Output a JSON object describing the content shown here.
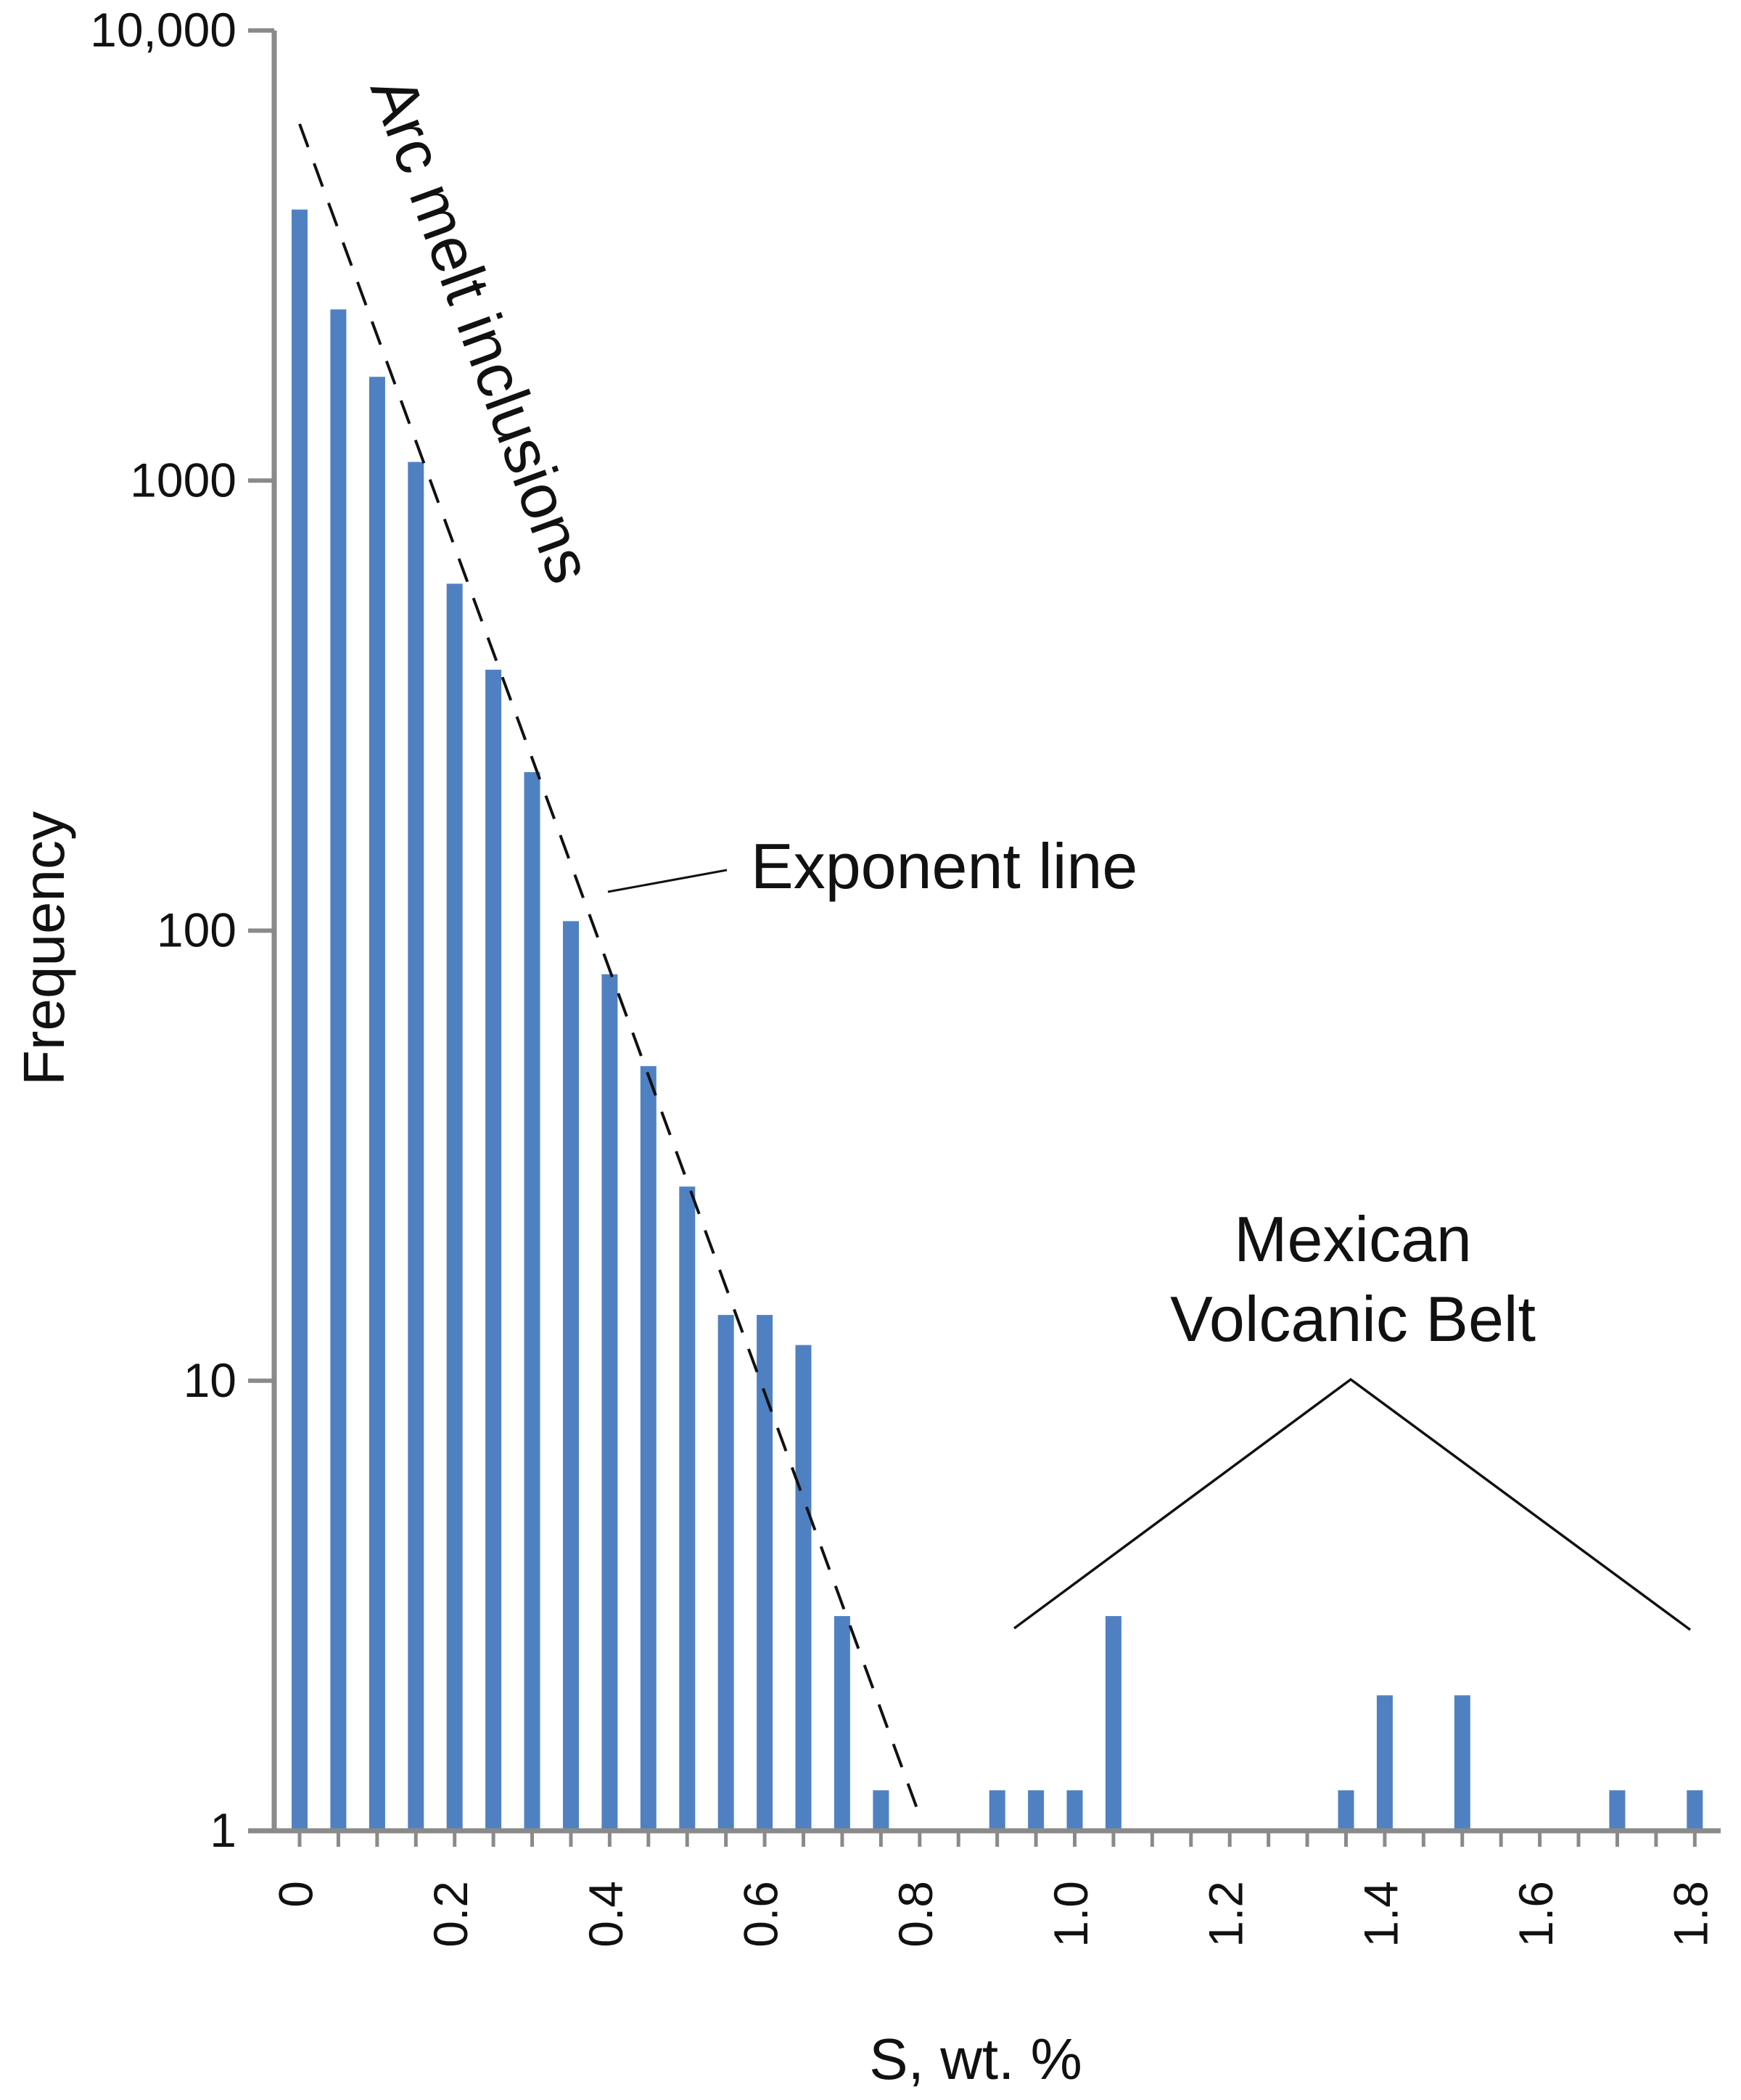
{
  "chart_data": {
    "type": "bar",
    "y_scale": "log",
    "ylabel": "Frequency",
    "xlabel": "S, wt. %",
    "ylim": [
      1,
      10000
    ],
    "xlim": [
      -0.03,
      1.83
    ],
    "y_ticks": [
      {
        "value": 1,
        "label": "1"
      },
      {
        "value": 10,
        "label": "10"
      },
      {
        "value": 100,
        "label": "100"
      },
      {
        "value": 1000,
        "label": "1000"
      },
      {
        "value": 10000,
        "label": "10,000"
      }
    ],
    "x_tick_labels": [
      {
        "value": 0,
        "label": "0"
      },
      {
        "value": 0.2,
        "label": "0.2"
      },
      {
        "value": 0.4,
        "label": "0.4"
      },
      {
        "value": 0.6,
        "label": "0.6"
      },
      {
        "value": 0.8,
        "label": "0.8"
      },
      {
        "value": 1.0,
        "label": "1.0"
      },
      {
        "value": 1.2,
        "label": "1.2"
      },
      {
        "value": 1.4,
        "label": "1.4"
      },
      {
        "value": 1.6,
        "label": "1.6"
      },
      {
        "value": 1.8,
        "label": "1.8"
      }
    ],
    "x_minor_step": 0.05,
    "bars": [
      {
        "x": 0.0,
        "value": 4000
      },
      {
        "x": 0.05,
        "value": 2400
      },
      {
        "x": 0.1,
        "value": 1700
      },
      {
        "x": 0.15,
        "value": 1100
      },
      {
        "x": 0.2,
        "value": 590
      },
      {
        "x": 0.25,
        "value": 380
      },
      {
        "x": 0.3,
        "value": 225
      },
      {
        "x": 0.35,
        "value": 105
      },
      {
        "x": 0.4,
        "value": 80
      },
      {
        "x": 0.45,
        "value": 50
      },
      {
        "x": 0.5,
        "value": 27
      },
      {
        "x": 0.55,
        "value": 14
      },
      {
        "x": 0.6,
        "value": 14
      },
      {
        "x": 0.65,
        "value": 12
      },
      {
        "x": 0.7,
        "value": 3
      },
      {
        "x": 0.75,
        "value": 1.23
      },
      {
        "x": 0.9,
        "value": 1.23
      },
      {
        "x": 0.95,
        "value": 1.23
      },
      {
        "x": 1.0,
        "value": 1.23
      },
      {
        "x": 1.05,
        "value": 3
      },
      {
        "x": 1.35,
        "value": 1.23
      },
      {
        "x": 1.4,
        "value": 2
      },
      {
        "x": 1.5,
        "value": 2
      },
      {
        "x": 1.7,
        "value": 1.23
      },
      {
        "x": 1.8,
        "value": 1.23
      }
    ],
    "exponent_line": {
      "x": [
        0.0,
        0.8
      ],
      "y": [
        6200,
        1.08
      ]
    },
    "annotations": {
      "arc_label": "Arc melt inclusions",
      "exponent_label": "Exponent line",
      "mexican_label_line1": "Mexican",
      "mexican_label_line2": "Volcanic Belt"
    },
    "colors": {
      "bar": "#4f81c2",
      "axis": "#8a8a8a",
      "text": "#111111"
    }
  }
}
